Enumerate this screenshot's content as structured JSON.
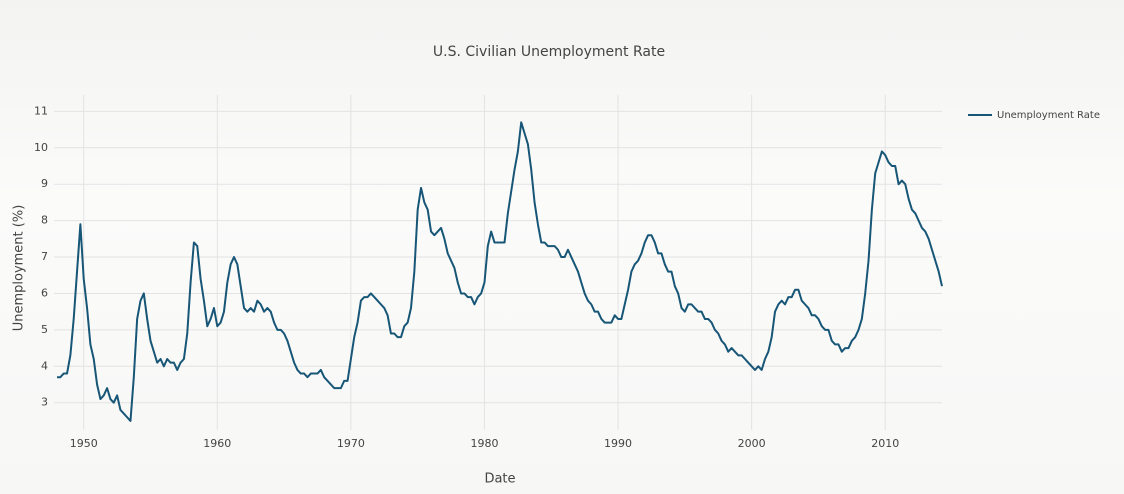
{
  "chart_data": {
    "type": "line",
    "title": "U.S. Civilian Unemployment Rate",
    "x_label": "Date",
    "y_label": "Unemployment (%)",
    "x": [
      1948,
      1948.25,
      1948.5,
      1948.75,
      1949,
      1949.25,
      1949.5,
      1949.75,
      1950,
      1950.25,
      1950.5,
      1950.75,
      1951,
      1951.25,
      1951.5,
      1951.75,
      1952,
      1952.25,
      1952.5,
      1952.75,
      1953,
      1953.25,
      1953.5,
      1953.75,
      1954,
      1954.25,
      1954.5,
      1954.75,
      1955,
      1955.25,
      1955.5,
      1955.75,
      1956,
      1956.25,
      1956.5,
      1956.75,
      1957,
      1957.25,
      1957.5,
      1957.75,
      1958,
      1958.25,
      1958.5,
      1958.75,
      1959,
      1959.25,
      1959.5,
      1959.75,
      1960,
      1960.25,
      1960.5,
      1960.75,
      1961,
      1961.25,
      1961.5,
      1961.75,
      1962,
      1962.25,
      1962.5,
      1962.75,
      1963,
      1963.25,
      1963.5,
      1963.75,
      1964,
      1964.25,
      1964.5,
      1964.75,
      1965,
      1965.25,
      1965.5,
      1965.75,
      1966,
      1966.25,
      1966.5,
      1966.75,
      1967,
      1967.25,
      1967.5,
      1967.75,
      1968,
      1968.25,
      1968.5,
      1968.75,
      1969,
      1969.25,
      1969.5,
      1969.75,
      1970,
      1970.25,
      1970.5,
      1970.75,
      1971,
      1971.25,
      1971.5,
      1971.75,
      1972,
      1972.25,
      1972.5,
      1972.75,
      1973,
      1973.25,
      1973.5,
      1973.75,
      1974,
      1974.25,
      1974.5,
      1974.75,
      1975,
      1975.25,
      1975.5,
      1975.75,
      1976,
      1976.25,
      1976.5,
      1976.75,
      1977,
      1977.25,
      1977.5,
      1977.75,
      1978,
      1978.25,
      1978.5,
      1978.75,
      1979,
      1979.25,
      1979.5,
      1979.75,
      1980,
      1980.25,
      1980.5,
      1980.75,
      1981,
      1981.25,
      1981.5,
      1981.75,
      1982,
      1982.25,
      1982.5,
      1982.75,
      1983,
      1983.25,
      1983.5,
      1983.75,
      1984,
      1984.25,
      1984.5,
      1984.75,
      1985,
      1985.25,
      1985.5,
      1985.75,
      1986,
      1986.25,
      1986.5,
      1986.75,
      1987,
      1987.25,
      1987.5,
      1987.75,
      1988,
      1988.25,
      1988.5,
      1988.75,
      1989,
      1989.25,
      1989.5,
      1989.75,
      1990,
      1990.25,
      1990.5,
      1990.75,
      1991,
      1991.25,
      1991.5,
      1991.75,
      1992,
      1992.25,
      1992.5,
      1992.75,
      1993,
      1993.25,
      1993.5,
      1993.75,
      1994,
      1994.25,
      1994.5,
      1994.75,
      1995,
      1995.25,
      1995.5,
      1995.75,
      1996,
      1996.25,
      1996.5,
      1996.75,
      1997,
      1997.25,
      1997.5,
      1997.75,
      1998,
      1998.25,
      1998.5,
      1998.75,
      1999,
      1999.25,
      1999.5,
      1999.75,
      2000,
      2000.25,
      2000.5,
      2000.75,
      2001,
      2001.25,
      2001.5,
      2001.75,
      2002,
      2002.25,
      2002.5,
      2002.75,
      2003,
      2003.25,
      2003.5,
      2003.75,
      2004,
      2004.25,
      2004.5,
      2004.75,
      2005,
      2005.25,
      2005.5,
      2005.75,
      2006,
      2006.25,
      2006.5,
      2006.75,
      2007,
      2007.25,
      2007.5,
      2007.75,
      2008,
      2008.25,
      2008.5,
      2008.75,
      2009,
      2009.25,
      2009.5,
      2009.75,
      2010,
      2010.25,
      2010.5,
      2010.75,
      2011,
      2011.25,
      2011.5,
      2011.75,
      2012,
      2012.25,
      2012.5,
      2012.75,
      2013,
      2013.25,
      2013.5,
      2013.75,
      2014,
      2014.25
    ],
    "series": [
      {
        "name": "Unemployment Rate",
        "color": "#175676",
        "values": [
          3.7,
          3.7,
          3.8,
          3.8,
          4.3,
          5.3,
          6.6,
          7.9,
          6.4,
          5.6,
          4.6,
          4.2,
          3.5,
          3.1,
          3.2,
          3.4,
          3.1,
          3.0,
          3.2,
          2.8,
          2.7,
          2.6,
          2.5,
          3.7,
          5.3,
          5.8,
          6.0,
          5.3,
          4.7,
          4.4,
          4.1,
          4.2,
          4.0,
          4.2,
          4.1,
          4.1,
          3.9,
          4.1,
          4.2,
          4.9,
          6.3,
          7.4,
          7.3,
          6.4,
          5.8,
          5.1,
          5.3,
          5.6,
          5.1,
          5.2,
          5.5,
          6.3,
          6.8,
          7.0,
          6.8,
          6.2,
          5.6,
          5.5,
          5.6,
          5.5,
          5.8,
          5.7,
          5.5,
          5.6,
          5.5,
          5.2,
          5.0,
          5.0,
          4.9,
          4.7,
          4.4,
          4.1,
          3.9,
          3.8,
          3.8,
          3.7,
          3.8,
          3.8,
          3.8,
          3.9,
          3.7,
          3.6,
          3.5,
          3.4,
          3.4,
          3.4,
          3.6,
          3.6,
          4.2,
          4.8,
          5.2,
          5.8,
          5.9,
          5.9,
          6.0,
          5.9,
          5.8,
          5.7,
          5.6,
          5.4,
          4.9,
          4.9,
          4.8,
          4.8,
          5.1,
          5.2,
          5.6,
          6.6,
          8.3,
          8.9,
          8.5,
          8.3,
          7.7,
          7.6,
          7.7,
          7.8,
          7.5,
          7.1,
          6.9,
          6.7,
          6.3,
          6.0,
          6.0,
          5.9,
          5.9,
          5.7,
          5.9,
          6.0,
          6.3,
          7.3,
          7.7,
          7.4,
          7.4,
          7.4,
          7.4,
          8.2,
          8.8,
          9.4,
          9.9,
          10.7,
          10.4,
          10.1,
          9.4,
          8.5,
          7.9,
          7.4,
          7.4,
          7.3,
          7.3,
          7.3,
          7.2,
          7.0,
          7.0,
          7.2,
          7.0,
          6.8,
          6.6,
          6.3,
          6.0,
          5.8,
          5.7,
          5.5,
          5.5,
          5.3,
          5.2,
          5.2,
          5.2,
          5.4,
          5.3,
          5.3,
          5.7,
          6.1,
          6.6,
          6.8,
          6.9,
          7.1,
          7.4,
          7.6,
          7.6,
          7.4,
          7.1,
          7.1,
          6.8,
          6.6,
          6.6,
          6.2,
          6.0,
          5.6,
          5.5,
          5.7,
          5.7,
          5.6,
          5.5,
          5.5,
          5.3,
          5.3,
          5.2,
          5.0,
          4.9,
          4.7,
          4.6,
          4.4,
          4.5,
          4.4,
          4.3,
          4.3,
          4.2,
          4.1,
          4.0,
          3.9,
          4.0,
          3.9,
          4.2,
          4.4,
          4.8,
          5.5,
          5.7,
          5.8,
          5.7,
          5.9,
          5.9,
          6.1,
          6.1,
          5.8,
          5.7,
          5.6,
          5.4,
          5.4,
          5.3,
          5.1,
          5.0,
          5.0,
          4.7,
          4.6,
          4.6,
          4.4,
          4.5,
          4.5,
          4.7,
          4.8,
          5.0,
          5.3,
          6.0,
          6.9,
          8.3,
          9.3,
          9.6,
          9.9,
          9.8,
          9.6,
          9.5,
          9.5,
          9.0,
          9.1,
          9.0,
          8.6,
          8.3,
          8.2,
          8.0,
          7.8,
          7.7,
          7.5,
          7.2,
          6.9,
          6.6,
          6.2
        ]
      }
    ],
    "xlim": [
      1948,
      2014.25
    ],
    "xticks": [
      1950,
      1960,
      1970,
      1980,
      1990,
      2000,
      2010
    ],
    "ylim": [
      2.25,
      11.45
    ],
    "yticks": [
      3,
      4,
      5,
      6,
      7,
      8,
      9,
      10,
      11
    ],
    "grid": true
  }
}
